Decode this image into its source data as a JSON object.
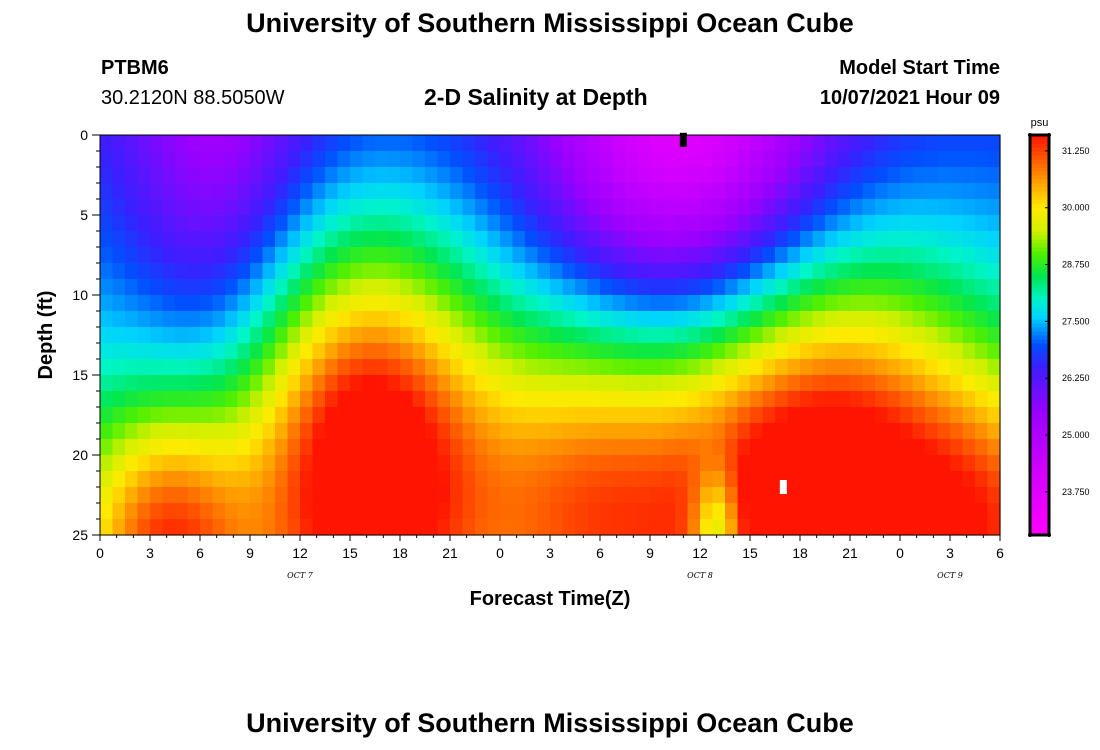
{
  "header": {
    "title": "University of Southern Mississippi Ocean Cube",
    "station_id": "PTBM6",
    "coordinates": "30.2120N  88.5050W",
    "plot_title": "2-D Salinity at Depth",
    "model_start_label": "Model Start Time",
    "model_start_value": "10/07/2021 Hour 09"
  },
  "footer": {
    "title": "University of Southern Mississippi Ocean Cube"
  },
  "chart_data": {
    "type": "heatmap",
    "title": "2-D Salinity at Depth",
    "xlabel": "Forecast Time(Z)",
    "ylabel": "Depth (ft)",
    "x_hours_range": [
      0,
      54
    ],
    "y_range_ft": [
      0,
      25
    ],
    "y_reversed": true,
    "x_tick_hours": [
      0,
      3,
      6,
      9,
      12,
      15,
      18,
      21,
      24,
      27,
      30,
      33,
      36,
      39,
      42,
      45,
      48,
      51,
      54
    ],
    "x_tick_labels": [
      "0",
      "3",
      "6",
      "9",
      "12",
      "15",
      "18",
      "21",
      "0",
      "3",
      "6",
      "9",
      "12",
      "15",
      "18",
      "21",
      "0",
      "3",
      "6"
    ],
    "y_ticks": [
      0,
      5,
      10,
      15,
      20,
      25
    ],
    "y_tick_labels": [
      "0",
      "5",
      "10",
      "15",
      "20",
      "25"
    ],
    "date_labels": [
      {
        "hour": 12,
        "text": "OCT 7"
      },
      {
        "hour": 36,
        "text": "OCT 8"
      },
      {
        "hour": 51,
        "text": "OCT 9"
      }
    ],
    "colorbar": {
      "unit": "psu",
      "min": 22.8,
      "max": 31.6,
      "ticks": [
        31.25,
        30.0,
        28.75,
        27.5,
        26.25,
        25.0,
        23.75
      ],
      "tick_labels": [
        "31.250",
        "30.000",
        "28.750",
        "27.500",
        "26.250",
        "25.000",
        "23.750"
      ],
      "color_stops": [
        {
          "value": 22.8,
          "color": "#ff00ff"
        },
        {
          "value": 24.2,
          "color": "#d200ff"
        },
        {
          "value": 25.5,
          "color": "#9a00ff"
        },
        {
          "value": 26.5,
          "color": "#3c1eff"
        },
        {
          "value": 27.0,
          "color": "#0050ff"
        },
        {
          "value": 27.6,
          "color": "#00d2ff"
        },
        {
          "value": 28.0,
          "color": "#00f5c8"
        },
        {
          "value": 28.5,
          "color": "#00e650"
        },
        {
          "value": 29.0,
          "color": "#50f000"
        },
        {
          "value": 29.5,
          "color": "#d2f000"
        },
        {
          "value": 30.0,
          "color": "#ffea00"
        },
        {
          "value": 30.5,
          "color": "#ffaa00"
        },
        {
          "value": 31.0,
          "color": "#ff6400"
        },
        {
          "value": 31.6,
          "color": "#ff1400"
        }
      ]
    },
    "salinity_components": [
      {
        "type": "base",
        "value": 26.8
      },
      {
        "type": "depth_gradient",
        "value_per_ft": 0.07
      },
      {
        "type": "bump",
        "hour": 4,
        "depth_ft": 25,
        "sigma_hours": 3.5,
        "sigma_ft": 6,
        "amplitude": 2.8
      },
      {
        "type": "bump",
        "hour": 16,
        "depth_ft": 20,
        "sigma_hours": 5,
        "sigma_ft": 9,
        "amplitude": 4.2
      },
      {
        "type": "bump",
        "hour": 29,
        "depth_ft": 22,
        "sigma_hours": 5,
        "sigma_ft": 8,
        "amplitude": 2.3
      },
      {
        "type": "bump",
        "hour": 43,
        "depth_ft": 21,
        "sigma_hours": 7,
        "sigma_ft": 9,
        "amplitude": 4.3
      },
      {
        "type": "bump",
        "hour": 54,
        "depth_ft": 24,
        "sigma_hours": 4,
        "sigma_ft": 6,
        "amplitude": 1.7
      },
      {
        "type": "bump",
        "hour": 35,
        "depth_ft": 0,
        "sigma_hours": 6,
        "sigma_ft": 10,
        "amplitude": -3.2
      },
      {
        "type": "bump",
        "hour": 7,
        "depth_ft": 0,
        "sigma_hours": 4,
        "sigma_ft": 12,
        "amplitude": -1.5
      },
      {
        "type": "bump",
        "hour": 37,
        "depth_ft": 25,
        "sigma_hours": 1,
        "sigma_ft": 3,
        "amplitude": -2.0
      }
    ],
    "markers": [
      {
        "hour": 35,
        "depth_ft": 0.3,
        "color": "#000000"
      },
      {
        "hour": 41,
        "depth_ft": 22,
        "color": "#ffffff"
      }
    ]
  }
}
